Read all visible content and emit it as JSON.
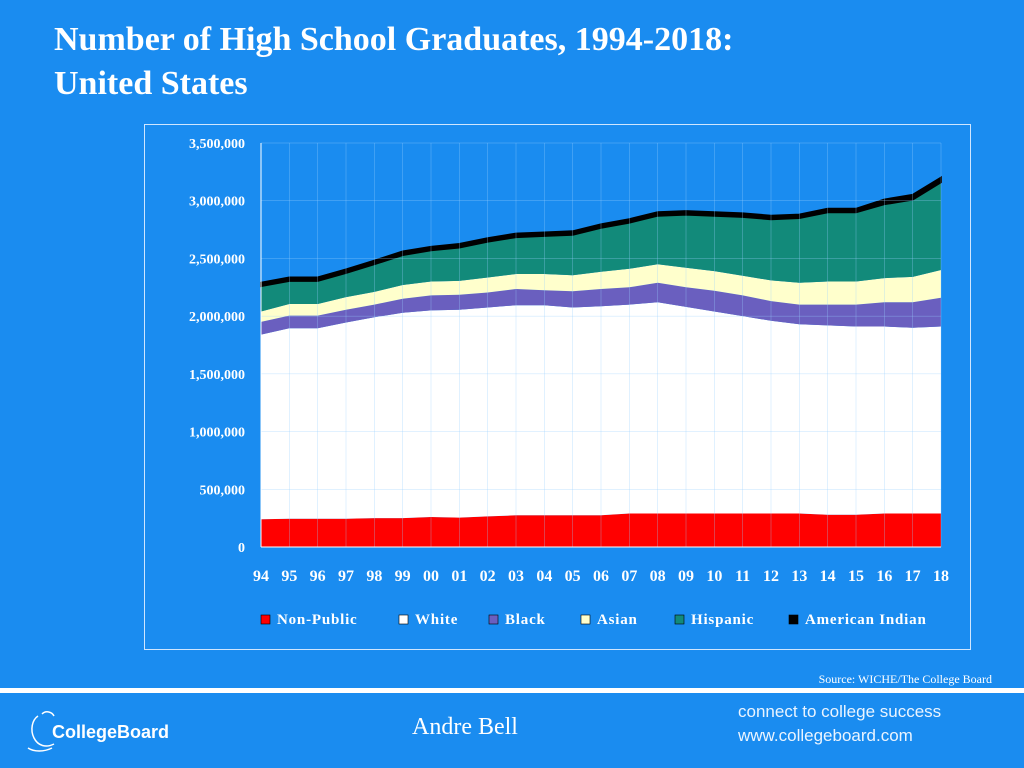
{
  "slide": {
    "title_line1": "Number of High School Graduates, 1994-2018:",
    "title_line2": "United States",
    "source": "Source: WICHE/The College Board",
    "author": "Andre Bell",
    "brand": "CollegeBoard",
    "tagline_line1": "connect to college success",
    "tagline_line2": "www.collegeboard.com"
  },
  "chart_data": {
    "type": "area",
    "stacked": true,
    "x": [
      "94",
      "95",
      "96",
      "97",
      "98",
      "99",
      "00",
      "01",
      "02",
      "03",
      "04",
      "05",
      "06",
      "07",
      "08",
      "09",
      "10",
      "11",
      "12",
      "13",
      "14",
      "15",
      "16",
      "17",
      "18"
    ],
    "ylim": [
      0,
      3500000
    ],
    "yticks": [
      0,
      500000,
      1000000,
      1500000,
      2000000,
      2500000,
      3000000,
      3500000
    ],
    "ytick_labels": [
      "0",
      "500,000",
      "1,000,000",
      "1,500,000",
      "2,000,000",
      "2,500,000",
      "3,000,000",
      "3,500,000"
    ],
    "grid": true,
    "legend": "bottom",
    "series": [
      {
        "name": "Non-Public",
        "color": "#ff0000",
        "values": [
          240000,
          245000,
          245000,
          245000,
          250000,
          250000,
          260000,
          255000,
          265000,
          275000,
          275000,
          275000,
          275000,
          290000,
          290000,
          290000,
          290000,
          290000,
          290000,
          290000,
          280000,
          280000,
          290000,
          290000,
          290000
        ]
      },
      {
        "name": "White",
        "color": "#ffffff",
        "values": [
          1600000,
          1650000,
          1650000,
          1700000,
          1740000,
          1780000,
          1790000,
          1800000,
          1810000,
          1820000,
          1820000,
          1800000,
          1810000,
          1810000,
          1830000,
          1790000,
          1750000,
          1710000,
          1670000,
          1640000,
          1640000,
          1630000,
          1620000,
          1610000,
          1620000
        ]
      },
      {
        "name": "Black",
        "color": "#6a5fbf",
        "values": [
          110000,
          110000,
          110000,
          110000,
          110000,
          120000,
          130000,
          130000,
          130000,
          140000,
          130000,
          140000,
          150000,
          150000,
          170000,
          170000,
          180000,
          180000,
          170000,
          170000,
          180000,
          190000,
          210000,
          220000,
          250000
        ]
      },
      {
        "name": "Asian",
        "color": "#ffffcc",
        "values": [
          90000,
          100000,
          100000,
          110000,
          110000,
          120000,
          120000,
          120000,
          130000,
          130000,
          140000,
          140000,
          150000,
          160000,
          160000,
          170000,
          170000,
          170000,
          180000,
          190000,
          200000,
          200000,
          210000,
          220000,
          240000
        ]
      },
      {
        "name": "Hispanic",
        "color": "#128a7a",
        "values": [
          220000,
          200000,
          200000,
          210000,
          240000,
          260000,
          270000,
          290000,
          310000,
          320000,
          330000,
          350000,
          380000,
          400000,
          420000,
          460000,
          480000,
          510000,
          530000,
          560000,
          600000,
          600000,
          640000,
          670000,
          760000
        ]
      },
      {
        "name": "American Indian",
        "color": "#000000",
        "values": [
          30000,
          30000,
          30000,
          30000,
          30000,
          30000,
          30000,
          30000,
          30000,
          30000,
          30000,
          30000,
          30000,
          30000,
          30000,
          30000,
          30000,
          30000,
          30000,
          30000,
          30000,
          30000,
          40000,
          40000,
          40000
        ]
      }
    ]
  }
}
